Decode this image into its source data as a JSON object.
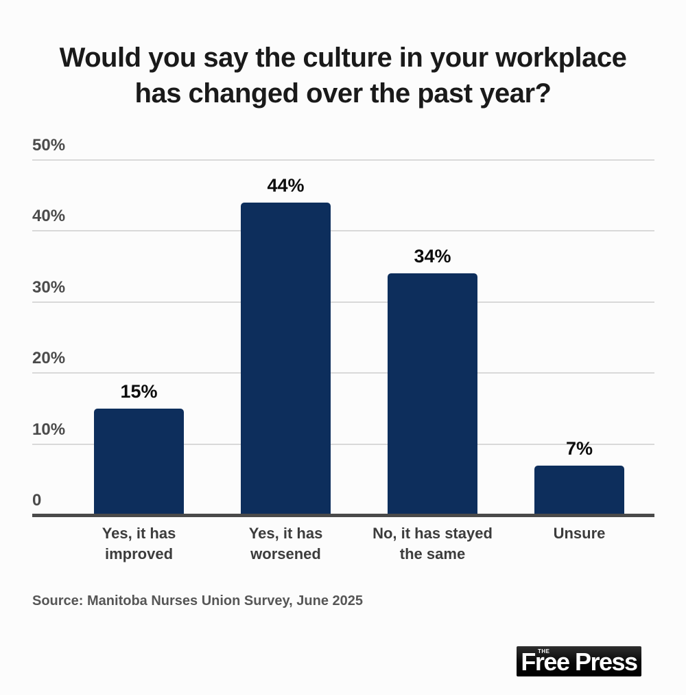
{
  "title": {
    "line1": "Would you say the culture in your workplace",
    "line2": "has changed over the past year?"
  },
  "source": "Source: Manitoba Nurses Union Survey, June 2025",
  "logo": {
    "prefix": "THE",
    "name": "Free Press"
  },
  "colors": {
    "bar": "#0d2e5c",
    "axis": "#4a4a4a",
    "gridline": "#d9d9d9",
    "logo_background": "#000000"
  },
  "chart_data": {
    "type": "bar",
    "title": "Would you say the culture in your workplace has changed over the past year?",
    "categories": [
      "Yes, it has improved",
      "Yes, it has worsened",
      "No, it has stayed the same",
      "Unsure"
    ],
    "values": [
      15,
      44,
      34,
      7
    ],
    "value_labels": [
      "15%",
      "44%",
      "34%",
      "7%"
    ],
    "xlabel": "",
    "ylabel": "",
    "ylim": [
      0,
      50
    ],
    "y_ticks": [
      0,
      10,
      20,
      30,
      40,
      50
    ],
    "y_tick_labels": [
      "0",
      "10%",
      "20%",
      "30%",
      "40%",
      "50%"
    ],
    "grid": true,
    "legend": false,
    "bar_color": "#0d2e5c"
  }
}
